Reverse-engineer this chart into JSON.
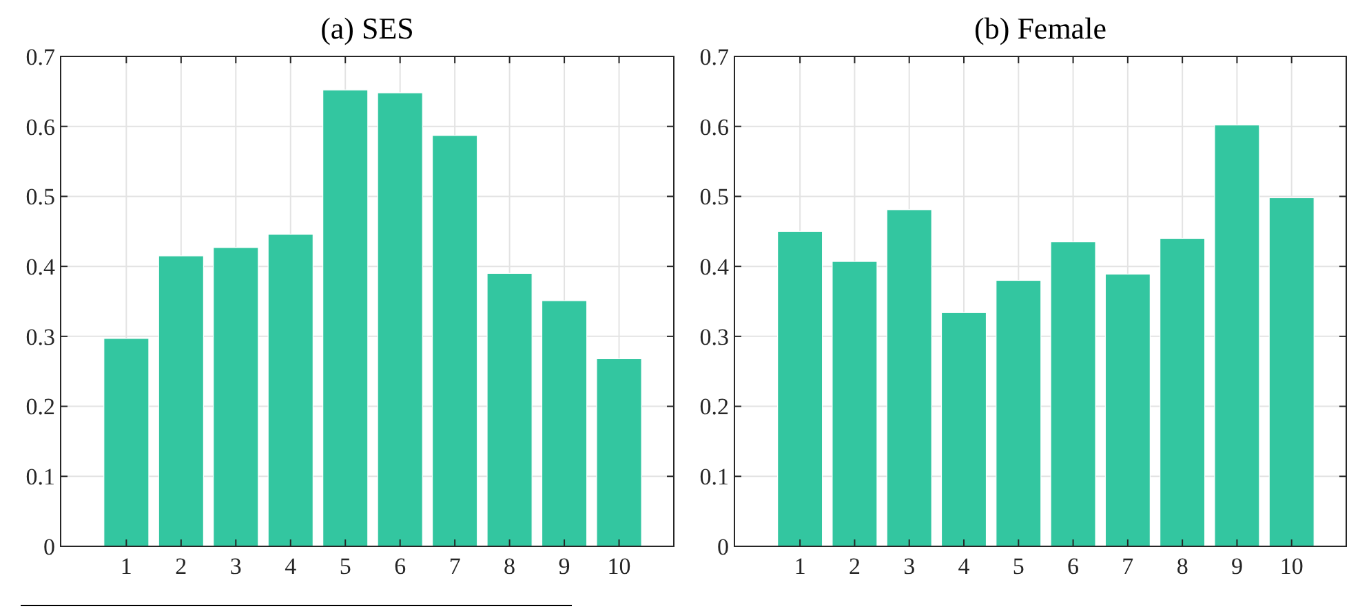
{
  "chart_data": [
    {
      "type": "bar",
      "title": "(a) SES",
      "x": [
        1,
        2,
        3,
        4,
        5,
        6,
        7,
        8,
        9,
        10
      ],
      "values": [
        0.297,
        0.415,
        0.427,
        0.446,
        0.652,
        0.648,
        0.587,
        0.39,
        0.351,
        0.268
      ],
      "color": "#33c6a0",
      "xlim": [
        -0.2,
        11
      ],
      "xticks": [
        1,
        2,
        3,
        4,
        5,
        6,
        7,
        8,
        9,
        10
      ],
      "ylim": [
        0,
        0.7
      ],
      "yticks": [
        0,
        0.1,
        0.2,
        0.3,
        0.4,
        0.5,
        0.6,
        0.7
      ],
      "grid": true
    },
    {
      "type": "bar",
      "title": "(b) Female",
      "x": [
        1,
        2,
        3,
        4,
        5,
        6,
        7,
        8,
        9,
        10
      ],
      "values": [
        0.45,
        0.407,
        0.481,
        0.334,
        0.38,
        0.435,
        0.389,
        0.44,
        0.602,
        0.498
      ],
      "color": "#33c6a0",
      "xlim": [
        -0.2,
        11
      ],
      "xticks": [
        1,
        2,
        3,
        4,
        5,
        6,
        7,
        8,
        9,
        10
      ],
      "ylim": [
        0,
        0.7
      ],
      "yticks": [
        0,
        0.1,
        0.2,
        0.3,
        0.4,
        0.5,
        0.6,
        0.7
      ],
      "grid": true
    }
  ]
}
